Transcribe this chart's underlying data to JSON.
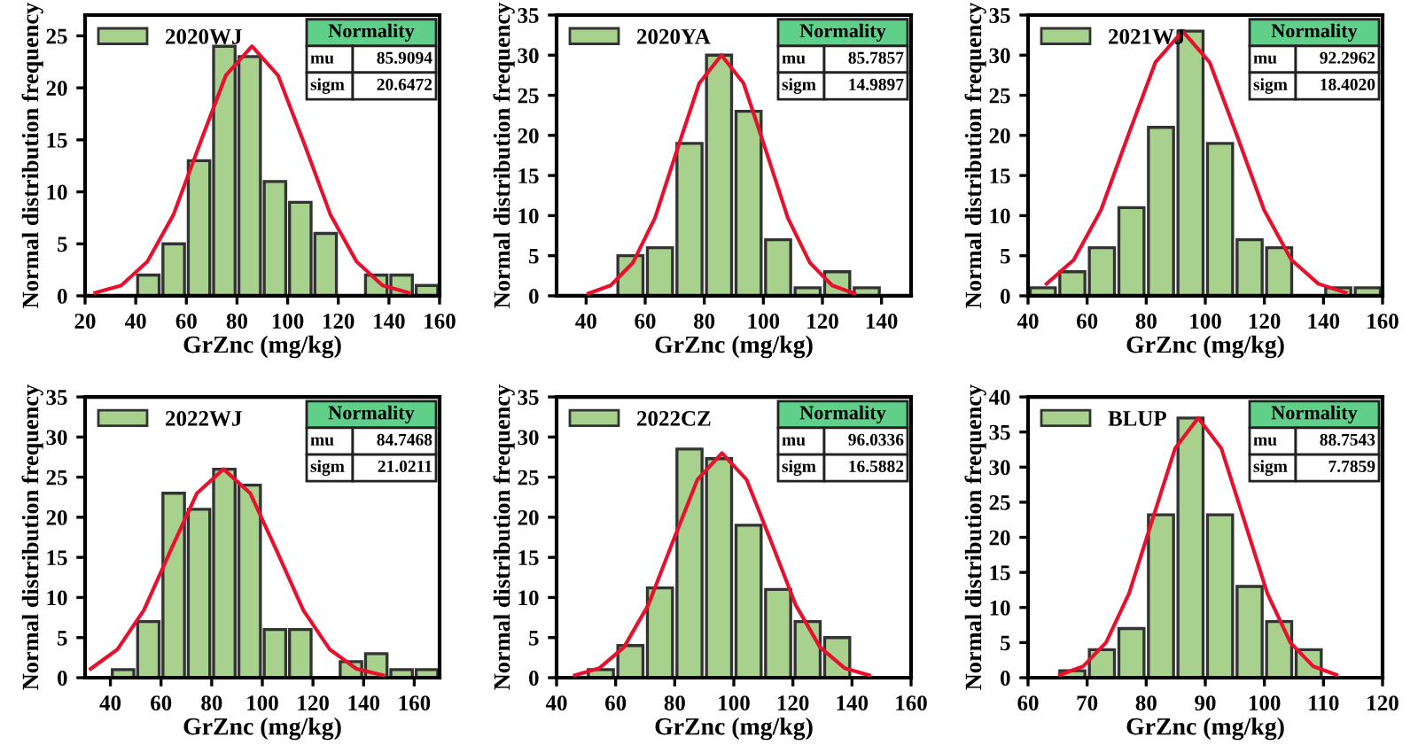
{
  "chart_data": [
    {
      "type": "histogram",
      "xlabel": "GrZnc (mg/kg)",
      "ylabel": "Normal distribution frequency",
      "xlim": [
        20,
        160
      ],
      "xticks": [
        20,
        40,
        60,
        80,
        100,
        120,
        140,
        160
      ],
      "ylim": [
        0,
        27
      ],
      "yticks": [
        0,
        5,
        10,
        15,
        20,
        25
      ],
      "legend": "top left",
      "annotations": [
        "Normality",
        "mu",
        "85.9094",
        "sigm",
        "20.6472"
      ],
      "series": [
        {
          "type": "histogram",
          "name": "2020WJ",
          "color": "#a9d18e",
          "bins": [
            40,
            50,
            60,
            70,
            80,
            90,
            100,
            110,
            120,
            130,
            140,
            150,
            160
          ],
          "values": [
            2,
            5,
            13,
            24,
            23,
            11,
            9,
            6,
            0,
            2,
            2,
            1
          ]
        },
        {
          "type": "line",
          "color": "#e8112d",
          "x": [
            24.0,
            34.3,
            44.6,
            54.9,
            65.3,
            75.6,
            85.9,
            96.2,
            106.6,
            116.9,
            127.2,
            137.5,
            147.8
          ],
          "values": [
            0.3,
            1,
            3.3,
            7.8,
            14.6,
            21.2,
            24,
            21.2,
            14.6,
            7.8,
            3.3,
            1,
            0.3
          ]
        }
      ]
    },
    {
      "type": "histogram",
      "xlabel": "GrZnc (mg/kg)",
      "ylabel": "Normal distribution frequency",
      "xlim": [
        30,
        150
      ],
      "xticks": [
        40,
        60,
        80,
        100,
        120,
        140
      ],
      "ylim": [
        0,
        35
      ],
      "yticks": [
        0,
        5,
        10,
        15,
        20,
        25,
        30,
        35
      ],
      "legend": "top left",
      "annotations": [
        "Normality",
        "mu",
        "85.7857",
        "sigm",
        "14.9897"
      ],
      "series": [
        {
          "type": "histogram",
          "name": "2020YA",
          "color": "#a9d18e",
          "bins": [
            50,
            60,
            70,
            80,
            90,
            100,
            110,
            120,
            130,
            140
          ],
          "values": [
            5,
            6,
            19,
            30,
            23,
            7,
            1,
            3,
            1
          ]
        },
        {
          "type": "line",
          "color": "#e8112d",
          "x": [
            40.8,
            48.3,
            55.8,
            63.3,
            70.8,
            78.3,
            85.8,
            93.3,
            100.8,
            108.3,
            115.8,
            123.3,
            130.8
          ],
          "values": [
            0.3,
            1.3,
            4.1,
            9.7,
            18.2,
            26.5,
            30,
            26.5,
            18.2,
            9.7,
            4.1,
            1.3,
            0.3
          ]
        }
      ]
    },
    {
      "type": "histogram",
      "xlabel": "GrZnc (mg/kg)",
      "ylabel": "Normal distribution frequency",
      "xlim": [
        40,
        160
      ],
      "xticks": [
        40,
        60,
        80,
        100,
        120,
        140,
        160
      ],
      "ylim": [
        0,
        35
      ],
      "yticks": [
        0,
        5,
        10,
        15,
        20,
        25,
        30,
        35
      ],
      "legend": "top left",
      "annotations": [
        "Normality",
        "mu",
        "92.2962",
        "sigm",
        "18.4020"
      ],
      "series": [
        {
          "type": "histogram",
          "name": "2021WJ",
          "color": "#a9d18e",
          "bins": [
            40,
            50,
            60,
            70,
            80,
            90,
            100,
            110,
            120,
            130,
            140,
            150,
            160
          ],
          "values": [
            1,
            3,
            6,
            11,
            21,
            33,
            19,
            7,
            6,
            0,
            1,
            1
          ]
        },
        {
          "type": "line",
          "color": "#e8112d",
          "x": [
            46.3,
            55.5,
            64.7,
            73.9,
            83.1,
            92.3,
            101.5,
            110.7,
            119.9,
            129.1,
            138.3,
            147.5
          ],
          "values": [
            1.5,
            4.5,
            10.7,
            20,
            29.1,
            33,
            29.1,
            20,
            10.7,
            4.5,
            1.5,
            0.4
          ]
        }
      ]
    },
    {
      "type": "histogram",
      "xlabel": "GrZnc (mg/kg)",
      "ylabel": "Normal distribution frequency",
      "xlim": [
        30,
        170
      ],
      "xticks": [
        40,
        60,
        80,
        100,
        120,
        140,
        160
      ],
      "ylim": [
        0,
        35
      ],
      "yticks": [
        0,
        5,
        10,
        15,
        20,
        25,
        30,
        35
      ],
      "legend": "top left",
      "annotations": [
        "Normality",
        "mu",
        "84.7468",
        "sigm",
        "21.0211"
      ],
      "series": [
        {
          "type": "histogram",
          "name": "2022WJ",
          "color": "#a9d18e",
          "bins": [
            40,
            50,
            60,
            70,
            80,
            90,
            100,
            110,
            120,
            130,
            140,
            150,
            160,
            170
          ],
          "values": [
            1,
            7,
            23,
            21,
            26,
            24,
            6,
            6,
            0,
            2,
            3,
            1,
            1
          ]
        },
        {
          "type": "line",
          "color": "#e8112d",
          "x": [
            32.2,
            42.7,
            53.2,
            63.7,
            74.2,
            84.7,
            95.2,
            105.7,
            116.2,
            126.7,
            137.2,
            147.7
          ],
          "values": [
            1.1,
            3.5,
            8.4,
            15.8,
            23,
            26,
            23,
            15.8,
            8.4,
            3.5,
            1.1,
            0.3
          ]
        }
      ]
    },
    {
      "type": "histogram",
      "xlabel": "GrZnc (mg/kg)",
      "ylabel": "Normal distribution frequency",
      "xlim": [
        40,
        160
      ],
      "xticks": [
        40,
        60,
        80,
        100,
        120,
        140,
        160
      ],
      "ylim": [
        0,
        35
      ],
      "yticks": [
        0,
        5,
        10,
        15,
        20,
        25,
        30,
        35
      ],
      "legend": "top left",
      "annotations": [
        "Normality",
        "mu",
        "96.0336",
        "sigm",
        "16.5882"
      ],
      "series": [
        {
          "type": "histogram",
          "name": "2022CZ",
          "color": "#a9d18e",
          "bins": [
            50,
            60,
            70,
            80,
            90,
            100,
            110,
            120,
            130,
            140
          ],
          "values": [
            1,
            4,
            11.2,
            28.5,
            27.3,
            19,
            11,
            7,
            5
          ]
        },
        {
          "type": "line",
          "color": "#e8112d",
          "x": [
            46.2,
            54.5,
            62.8,
            71.1,
            79.4,
            87.7,
            96.0,
            104.3,
            112.6,
            120.9,
            129.2,
            137.5,
            145.8
          ],
          "values": [
            0.3,
            1.2,
            3.8,
            9.1,
            17,
            24.7,
            28,
            24.7,
            17,
            9.1,
            3.8,
            1.2,
            0.3
          ]
        }
      ]
    },
    {
      "type": "histogram",
      "xlabel": "GrZnc (mg/kg)",
      "ylabel": "Normal distribution frequency",
      "xlim": [
        60,
        120
      ],
      "xticks": [
        60,
        70,
        80,
        90,
        100,
        110,
        120
      ],
      "ylim": [
        0,
        40
      ],
      "yticks": [
        0,
        5,
        10,
        15,
        20,
        25,
        30,
        35,
        40
      ],
      "legend": "top left",
      "annotations": [
        "Normality",
        "mu",
        "88.7543",
        "sigm",
        "7.7859"
      ],
      "series": [
        {
          "type": "histogram",
          "name": "BLUP",
          "color": "#a9d18e",
          "bins": [
            65,
            70,
            75,
            80,
            85,
            90,
            95,
            100,
            105,
            110
          ],
          "values": [
            1,
            4,
            7,
            23.2,
            37,
            23.2,
            13,
            8,
            4
          ]
        },
        {
          "type": "line",
          "color": "#e8112d",
          "x": [
            65.4,
            69.3,
            73.2,
            77.1,
            81.0,
            84.9,
            88.8,
            92.7,
            96.6,
            100.5,
            104.4,
            108.3,
            112.2
          ],
          "values": [
            0.4,
            1.6,
            5,
            12,
            22.4,
            32.7,
            37,
            32.7,
            22.4,
            12,
            5,
            1.6,
            0.4
          ]
        }
      ]
    }
  ]
}
